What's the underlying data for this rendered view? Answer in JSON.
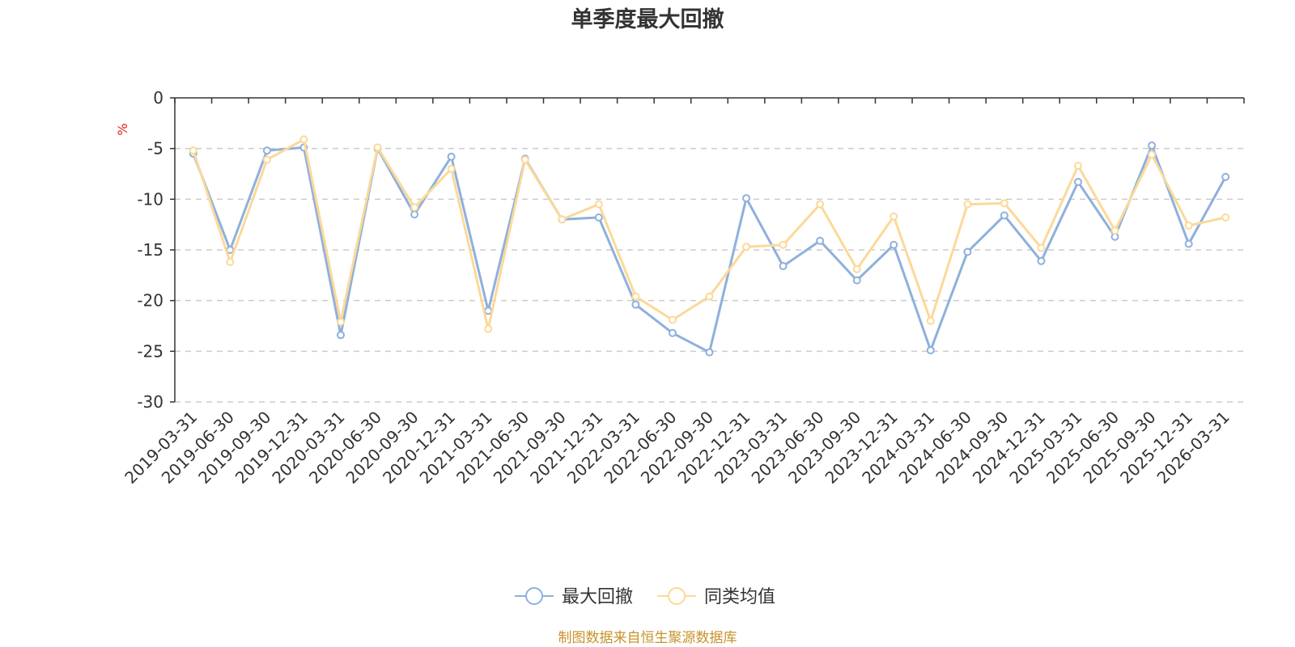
{
  "chart_data": {
    "type": "line",
    "title": "单季度最大回撤",
    "ylabel": "%",
    "xlabel": "",
    "ylim": [
      -30,
      0
    ],
    "yticks": [
      0,
      -5,
      -10,
      -15,
      -20,
      -25,
      -30
    ],
    "grid": true,
    "legend_position": "bottom-center",
    "categories": [
      "2019-03-31",
      "2019-06-30",
      "2019-09-30",
      "2019-12-31",
      "2020-03-31",
      "2020-06-30",
      "2020-09-30",
      "2020-12-31",
      "2021-03-31",
      "2021-06-30",
      "2021-09-30",
      "2021-12-31",
      "2022-03-31",
      "2022-06-30",
      "2022-09-30",
      "2022-12-31",
      "2023-03-31",
      "2023-06-30",
      "2023-09-30",
      "2023-12-31",
      "2024-03-31",
      "2024-06-30",
      "2024-09-30",
      "2024-12-31",
      "2025-03-31",
      "2025-06-30",
      "2025-09-30",
      "2025-12-31",
      "2026-03-31"
    ],
    "series": [
      {
        "name": "最大回撤",
        "color": "#8eb0dc",
        "values": [
          -5.5,
          -15.0,
          -5.2,
          -4.9,
          -23.4,
          -5.0,
          -11.5,
          -5.8,
          -21.0,
          -6.0,
          -12.0,
          -11.8,
          -20.4,
          -23.2,
          -25.1,
          -9.9,
          -16.6,
          -14.1,
          -18.0,
          -14.5,
          -24.9,
          -15.2,
          -11.6,
          -16.1,
          -8.3,
          -13.7,
          -4.7,
          -14.4,
          -7.8
        ]
      },
      {
        "name": "同类均值",
        "color": "#fbd998",
        "values": [
          -5.2,
          -16.2,
          -6.1,
          -4.1,
          -22.1,
          -4.9,
          -10.8,
          -7.0,
          -22.8,
          -6.1,
          -12.0,
          -10.5,
          -19.6,
          -21.9,
          -19.6,
          -14.7,
          -14.5,
          -10.5,
          -16.9,
          -11.7,
          -22.0,
          -10.5,
          -10.4,
          -14.8,
          -6.7,
          -13.1,
          -5.6,
          -12.6,
          -11.8
        ]
      }
    ]
  },
  "source_text": "制图数据来自恒生聚源数据库",
  "colors": {
    "axis": "#333333",
    "grid": "#cccccc",
    "unit": "#e02020",
    "source": "#c8922a"
  }
}
